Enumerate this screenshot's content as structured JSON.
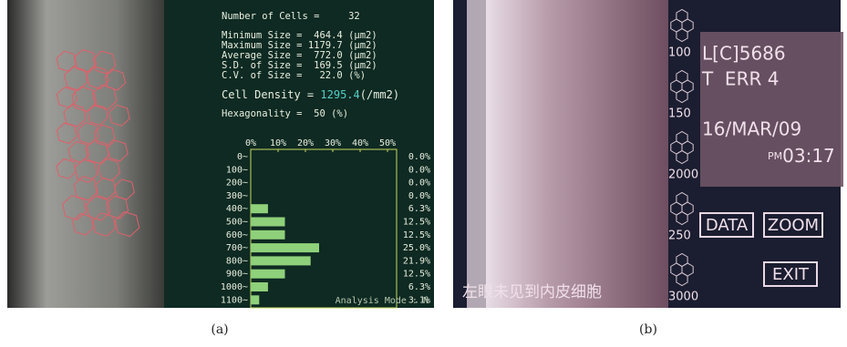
{
  "panel_a": {
    "stats": [
      "Number of Cells =     32",
      "Minimum Size =  464.4 (μm2)",
      "Maximum Size = 1179.7 (μm2)",
      "Average Size =  772.0 (μm2)",
      "S.D. of Size =  169.5 (μm2)",
      "C.V. of Size =   22.0 (%)"
    ],
    "density": {
      "label": "Cell Density =",
      "value": "1295.4",
      "unit": "(/mm2)"
    },
    "hexagonality": "Hexagonality =  50 (%)",
    "histogram": {
      "type": "bar",
      "categories": [
        "0~",
        "100~",
        "200~",
        "300~",
        "400~",
        "500~",
        "600~",
        "700~",
        "800~",
        "900~",
        "1000~",
        "1100~"
      ],
      "values": [
        0.0,
        0.0,
        0.0,
        0.0,
        6.3,
        12.5,
        12.5,
        25.0,
        21.9,
        12.5,
        6.3,
        3.1
      ],
      "value_labels": [
        "0.0%",
        "0.0%",
        "0.0%",
        "0.0%",
        "6.3%",
        "12.5%",
        "12.5%",
        "25.0%",
        "21.9%",
        "12.5%",
        "6.3%",
        "3.1%"
      ],
      "color": "#8fd07a",
      "xlim": [
        0,
        50
      ],
      "xticks": [
        {
          "value": 0,
          "label": "0%"
        },
        {
          "value": 10,
          "label": "10%"
        },
        {
          "value": 20,
          "label": "20%"
        },
        {
          "value": 30,
          "label": "30%"
        },
        {
          "value": 40,
          "label": "40%"
        },
        {
          "value": 50,
          "label": "50%"
        }
      ]
    },
    "mode": "Analysis Mode : N",
    "caption": "(a)"
  },
  "panel_b": {
    "scale_labels": [
      "100",
      "150",
      "2000",
      "250",
      "3000"
    ],
    "id": "L[C]5686",
    "error": "T  ERR 4",
    "date": "16/MAR/09",
    "ampm": "PM",
    "time": "03:17",
    "buttons": [
      "DATA",
      "ZOOM",
      "EXIT"
    ],
    "message": "左眼未见到内皮细胞",
    "caption": "(b)"
  }
}
